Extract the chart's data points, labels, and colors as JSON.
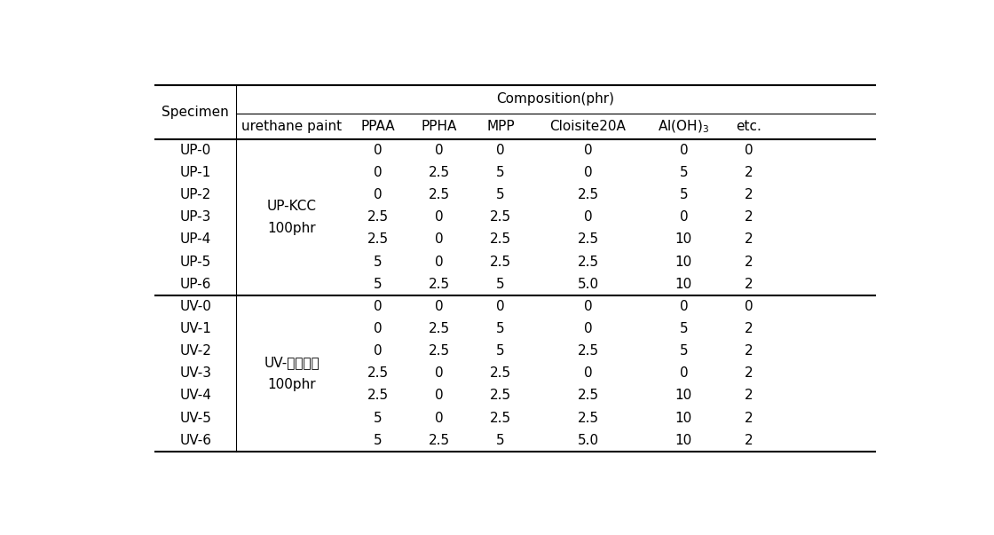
{
  "group1_label_line1": "UP-KCC",
  "group1_label_line2": "100phr",
  "group2_label_line1": "UV-건설화학",
  "group2_label_line2": "100phr",
  "col_header_row2": [
    "urethane paint",
    "PPAA",
    "PPHA",
    "MPP",
    "Cloisite20A",
    "Al(OH)3",
    "etc."
  ],
  "rows": [
    [
      "UP-0",
      "0",
      "0",
      "0",
      "0",
      "0",
      "0"
    ],
    [
      "UP-1",
      "0",
      "2.5",
      "5",
      "0",
      "5",
      "2"
    ],
    [
      "UP-2",
      "0",
      "2.5",
      "5",
      "2.5",
      "5",
      "2"
    ],
    [
      "UP-3",
      "2.5",
      "0",
      "2.5",
      "0",
      "0",
      "2"
    ],
    [
      "UP-4",
      "2.5",
      "0",
      "2.5",
      "2.5",
      "10",
      "2"
    ],
    [
      "UP-5",
      "5",
      "0",
      "2.5",
      "2.5",
      "10",
      "2"
    ],
    [
      "UP-6",
      "5",
      "2.5",
      "5",
      "5.0",
      "10",
      "2"
    ],
    [
      "UV-0",
      "0",
      "0",
      "0",
      "0",
      "0",
      "0"
    ],
    [
      "UV-1",
      "0",
      "2.5",
      "5",
      "0",
      "5",
      "2"
    ],
    [
      "UV-2",
      "0",
      "2.5",
      "5",
      "2.5",
      "5",
      "2"
    ],
    [
      "UV-3",
      "2.5",
      "0",
      "2.5",
      "0",
      "0",
      "2"
    ],
    [
      "UV-4",
      "2.5",
      "0",
      "2.5",
      "2.5",
      "10",
      "2"
    ],
    [
      "UV-5",
      "5",
      "0",
      "2.5",
      "2.5",
      "10",
      "2"
    ],
    [
      "UV-6",
      "5",
      "2.5",
      "5",
      "5.0",
      "10",
      "2"
    ]
  ],
  "background_color": "#ffffff",
  "text_color": "#000000",
  "font_size": 11
}
